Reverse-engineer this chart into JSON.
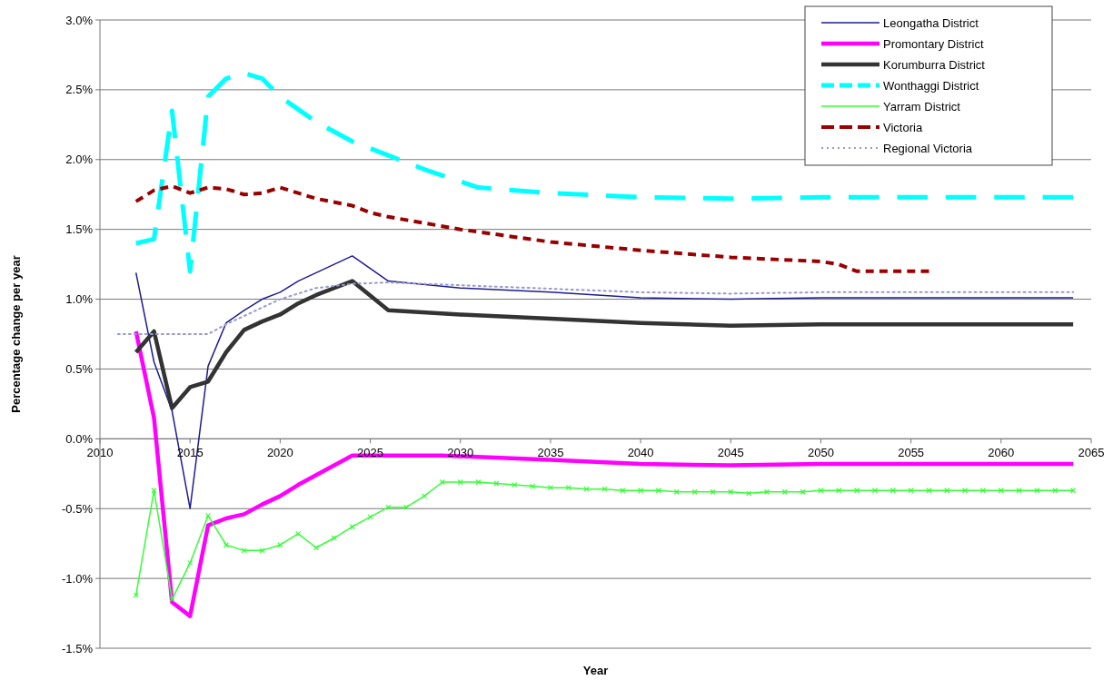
{
  "chart_data": {
    "type": "line",
    "xlabel": "Year",
    "ylabel": "Percentage change per year",
    "xlim": [
      2010,
      2065
    ],
    "xticks": [
      2010,
      2015,
      2020,
      2025,
      2030,
      2035,
      2040,
      2045,
      2050,
      2055,
      2060,
      2065
    ],
    "ylim": [
      -1.5,
      3.0
    ],
    "yticks": [
      {
        "value": -1.5,
        "label": "-1.5%"
      },
      {
        "value": -1,
        "label": "-1.0%"
      },
      {
        "value": -0.5,
        "label": "-0.5%"
      },
      {
        "value": 0,
        "label": "0.0%"
      },
      {
        "value": 0.5,
        "label": "0.5%"
      },
      {
        "value": 1,
        "label": "1.0%"
      },
      {
        "value": 1.5,
        "label": "1.5%"
      },
      {
        "value": 2,
        "label": "2.0%"
      },
      {
        "value": 2.5,
        "label": "2.5%"
      },
      {
        "value": 3,
        "label": "3.0%"
      }
    ],
    "grid": "y",
    "legend": "top right",
    "series": [
      {
        "name": "Leongatha District",
        "color": "#1c1c8f",
        "line_style": "solid",
        "marker": "none",
        "x": [
          2012,
          2013,
          2014,
          2015,
          2016,
          2017,
          2018,
          2019,
          2020,
          2021,
          2022,
          2023,
          2024,
          2026,
          2030,
          2035,
          2040,
          2045,
          2050,
          2064
        ],
        "values": [
          1.19,
          0.55,
          0.2,
          -0.5,
          0.52,
          0.83,
          0.92,
          1.0,
          1.05,
          1.13,
          1.19,
          1.25,
          1.31,
          1.13,
          1.08,
          1.05,
          1.01,
          1.0,
          1.01,
          1.01
        ]
      },
      {
        "name": "Promontary District",
        "color": "#ff00ff",
        "line_style": "solid",
        "marker": "none",
        "x": [
          2012,
          2013,
          2014,
          2015,
          2016,
          2017,
          2018,
          2019,
          2020,
          2021,
          2022,
          2023,
          2024,
          2026,
          2029,
          2035,
          2040,
          2045,
          2050,
          2064
        ],
        "values": [
          0.77,
          0.15,
          -1.17,
          -1.27,
          -0.62,
          -0.57,
          -0.54,
          -0.47,
          -0.41,
          -0.33,
          -0.26,
          -0.19,
          -0.12,
          -0.12,
          -0.12,
          -0.15,
          -0.18,
          -0.19,
          -0.18,
          -0.18
        ]
      },
      {
        "name": "Korumburra District",
        "color": "#333333",
        "line_style": "solid",
        "marker": "none",
        "x": [
          2012,
          2013,
          2014,
          2015,
          2016,
          2017,
          2018,
          2019,
          2020,
          2021,
          2022,
          2023,
          2024,
          2026,
          2030,
          2035,
          2040,
          2045,
          2050,
          2064
        ],
        "values": [
          0.62,
          0.77,
          0.22,
          0.37,
          0.41,
          0.62,
          0.78,
          0.84,
          0.89,
          0.97,
          1.03,
          1.08,
          1.13,
          0.92,
          0.89,
          0.86,
          0.83,
          0.81,
          0.82,
          0.82
        ]
      },
      {
        "name": "Wonthaggi District",
        "color": "#00ffff",
        "line_style": "dashed",
        "marker": "none",
        "x": [
          2012,
          2013,
          2014,
          2015,
          2016,
          2017,
          2018,
          2019,
          2020,
          2022,
          2024,
          2026,
          2028,
          2031,
          2035,
          2040,
          2045,
          2050,
          2064
        ],
        "values": [
          1.4,
          1.43,
          2.35,
          1.2,
          2.45,
          2.58,
          2.62,
          2.58,
          2.45,
          2.27,
          2.13,
          2.03,
          1.93,
          1.8,
          1.76,
          1.73,
          1.72,
          1.73,
          1.73
        ]
      },
      {
        "name": "Yarram District",
        "color": "#33ff33",
        "line_style": "solid",
        "marker": "cross",
        "x": [
          2012,
          2013,
          2014,
          2015,
          2016,
          2017,
          2018,
          2019,
          2020,
          2021,
          2022,
          2023,
          2024,
          2025,
          2026,
          2027,
          2028,
          2029,
          2030,
          2031,
          2032,
          2033,
          2034,
          2035,
          2036,
          2037,
          2038,
          2039,
          2040,
          2041,
          2042,
          2043,
          2044,
          2045,
          2046,
          2047,
          2048,
          2049,
          2050,
          2051,
          2052,
          2053,
          2054,
          2055,
          2056,
          2057,
          2058,
          2059,
          2060,
          2061,
          2062,
          2063,
          2064
        ],
        "values": [
          -1.12,
          -0.37,
          -1.15,
          -0.89,
          -0.55,
          -0.76,
          -0.8,
          -0.8,
          -0.76,
          -0.68,
          -0.78,
          -0.71,
          -0.63,
          -0.56,
          -0.49,
          -0.49,
          -0.41,
          -0.31,
          -0.31,
          -0.31,
          -0.32,
          -0.33,
          -0.34,
          -0.35,
          -0.35,
          -0.36,
          -0.36,
          -0.37,
          -0.37,
          -0.37,
          -0.38,
          -0.38,
          -0.38,
          -0.38,
          -0.39,
          -0.38,
          -0.38,
          -0.38,
          -0.37,
          -0.37,
          -0.37,
          -0.37,
          -0.37,
          -0.37,
          -0.37,
          -0.37,
          -0.37,
          -0.37,
          -0.37,
          -0.37,
          -0.37,
          -0.37,
          -0.37
        ]
      },
      {
        "name": "Victoria",
        "color": "#990000",
        "line_style": "dashed",
        "marker": "none",
        "x": [
          2012,
          2013,
          2014,
          2015,
          2016,
          2017,
          2018,
          2019,
          2020,
          2021,
          2022,
          2024,
          2025,
          2026,
          2030,
          2035,
          2040,
          2045,
          2050,
          2051,
          2052,
          2056
        ],
        "values": [
          1.7,
          1.78,
          1.81,
          1.76,
          1.8,
          1.79,
          1.75,
          1.76,
          1.8,
          1.76,
          1.72,
          1.67,
          1.62,
          1.59,
          1.5,
          1.41,
          1.35,
          1.3,
          1.27,
          1.25,
          1.2,
          1.2
        ]
      },
      {
        "name": "Regional Victoria",
        "color": "#9999cc",
        "line_style": "dotted",
        "marker": "none",
        "x": [
          2011,
          2016,
          2017,
          2020,
          2022,
          2024,
          2026,
          2030,
          2040,
          2045,
          2050,
          2064
        ],
        "values": [
          0.75,
          0.75,
          0.82,
          1.0,
          1.08,
          1.11,
          1.12,
          1.1,
          1.05,
          1.04,
          1.05,
          1.05
        ]
      }
    ]
  }
}
